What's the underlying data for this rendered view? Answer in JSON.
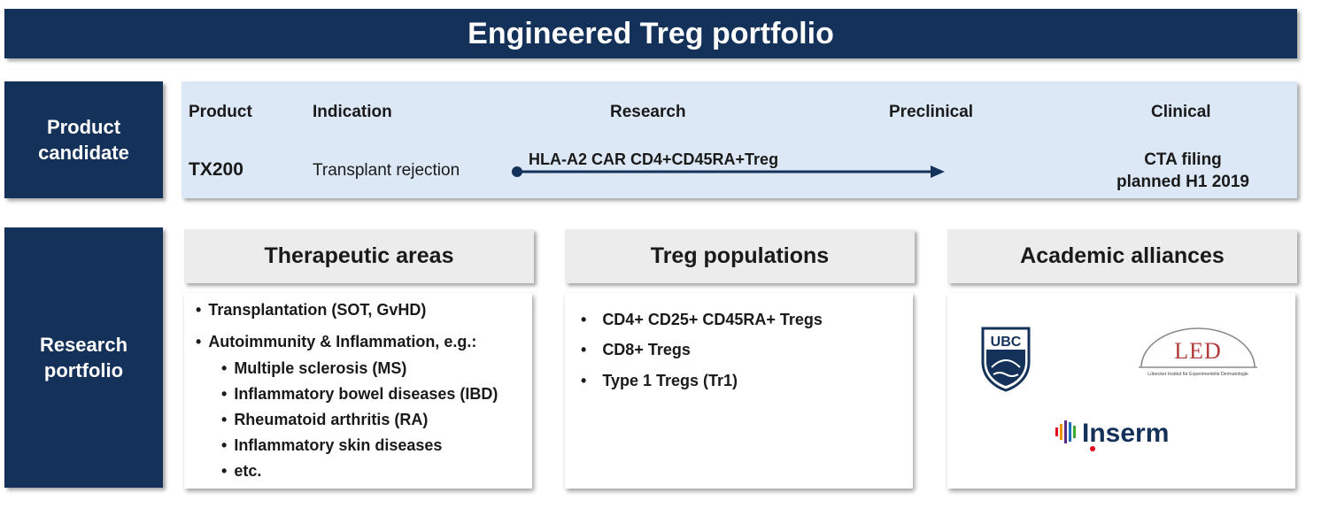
{
  "title": "Engineered Treg portfolio",
  "product_section": {
    "label_lines": [
      "Product",
      "candidate"
    ],
    "headers": {
      "product": "Product",
      "indication": "Indication",
      "research": "Research",
      "preclinical": "Preclinical",
      "clinical": "Clinical"
    },
    "row": {
      "product": "TX200",
      "indication": "Transplant rejection",
      "construct": "HLA-A2 CAR  CD4+CD45RA+Treg",
      "status_lines": [
        "CTA filing",
        "planned H1 2019"
      ]
    }
  },
  "research_section": {
    "label_lines": [
      "Research",
      "portfolio"
    ],
    "therapeutic_areas": {
      "title": "Therapeutic areas",
      "items": [
        "Transplantation (SOT, GvHD)",
        "Autoimmunity & Inflammation, e.g.:"
      ],
      "subitems": [
        "Multiple sclerosis (MS)",
        "Inflammatory bowel diseases (IBD)",
        "Rheumatoid arthritis (RA)",
        "Inflammatory skin diseases",
        "etc."
      ]
    },
    "treg_populations": {
      "title": "Treg populations",
      "items": [
        "CD4+ CD25+ CD45RA+ Tregs",
        "CD8+ Tregs",
        "Type 1 Tregs (Tr1)"
      ]
    },
    "academic_alliances": {
      "title": "Academic alliances",
      "logos": {
        "ubc": "UBC",
        "led": "LED",
        "led_caption": "Lübecker Institut für Experimentelle Dermatologie",
        "inserm": "Inserm"
      }
    }
  },
  "colors": {
    "navy": "#14315a",
    "panel_blue": "#dce8f6",
    "card_grey": "#ececec",
    "inserm_red": "#e2001a"
  }
}
